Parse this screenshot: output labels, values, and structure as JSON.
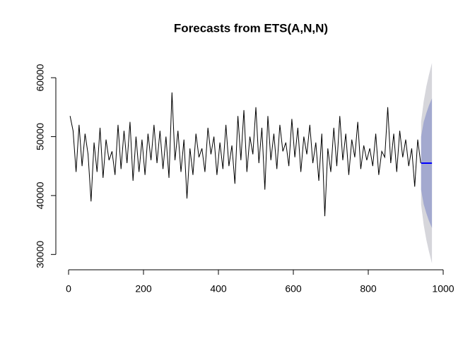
{
  "chart_data": {
    "type": "line",
    "title": "Forecasts from ETS(A,N,N)",
    "x": [
      4,
      12,
      20,
      28,
      36,
      44,
      52,
      60,
      68,
      76,
      84,
      92,
      100,
      108,
      116,
      124,
      132,
      140,
      148,
      156,
      164,
      172,
      180,
      188,
      196,
      204,
      212,
      220,
      228,
      236,
      244,
      252,
      260,
      268,
      276,
      284,
      292,
      300,
      308,
      316,
      324,
      332,
      340,
      348,
      356,
      364,
      372,
      380,
      388,
      396,
      404,
      412,
      420,
      428,
      436,
      444,
      452,
      460,
      468,
      476,
      484,
      492,
      500,
      508,
      516,
      524,
      532,
      540,
      548,
      556,
      564,
      572,
      580,
      588,
      596,
      604,
      612,
      620,
      628,
      636,
      644,
      652,
      660,
      668,
      676,
      684,
      692,
      700,
      708,
      716,
      724,
      732,
      740,
      748,
      756,
      764,
      772,
      780,
      788,
      796,
      804,
      812,
      820,
      828,
      836,
      844,
      852,
      860,
      868,
      876,
      884,
      892,
      900,
      908,
      916,
      924,
      932,
      940
    ],
    "series": [
      {
        "color": "#000000",
        "values": [
          53500,
          51000,
          44000,
          52000,
          45000,
          50500,
          47000,
          39000,
          49000,
          44000,
          51500,
          43000,
          49500,
          46000,
          47500,
          43500,
          52000,
          44500,
          51000,
          45500,
          52500,
          42500,
          50000,
          44000,
          49500,
          43500,
          50500,
          46000,
          52000,
          45500,
          51000,
          44500,
          50000,
          43000,
          57500,
          46000,
          51000,
          44000,
          49500,
          39500,
          48000,
          43500,
          50500,
          46500,
          48000,
          44000,
          51500,
          47000,
          50000,
          43500,
          49000,
          44500,
          52000,
          45000,
          48500,
          42000,
          53500,
          46000,
          54500,
          44000,
          50000,
          47000,
          55000,
          45500,
          51500,
          41000,
          53500,
          46000,
          50500,
          44500,
          52000,
          47500,
          49000,
          45000,
          53000,
          46500,
          51500,
          44000,
          50000,
          47000,
          52000,
          45500,
          49000,
          42500,
          50500,
          36500,
          48000,
          44000,
          51500,
          45000,
          53500,
          46000,
          50500,
          43500,
          49500,
          46500,
          52500,
          44500,
          48500,
          46000,
          48000,
          45000,
          50500,
          43500,
          47500,
          46500,
          55000,
          45500,
          50500,
          44000,
          51000,
          46500,
          49500,
          45000,
          48000,
          41500,
          49500,
          45500
        ]
      }
    ],
    "forecast": {
      "x": [
        941,
        948,
        955,
        962,
        970
      ],
      "mean": [
        45500,
        45500,
        45500,
        45500,
        45500
      ],
      "lo80": [
        41000,
        38500,
        37000,
        35700,
        34500
      ],
      "hi80": [
        50000,
        52500,
        54000,
        55300,
        56500
      ],
      "lo95": [
        38500,
        35000,
        32500,
        30500,
        28500
      ],
      "hi95": [
        52500,
        56000,
        58500,
        60500,
        62500
      ],
      "color": "#0000ff",
      "color80": "#a3a9cf",
      "color95": "#d6d6db"
    },
    "xlim": [
      -34,
      1000
    ],
    "ylim": [
      27400,
      63000
    ],
    "xticks": [
      0,
      200,
      400,
      600,
      800,
      1000
    ],
    "yticks": [
      30000,
      40000,
      50000,
      60000
    ]
  }
}
